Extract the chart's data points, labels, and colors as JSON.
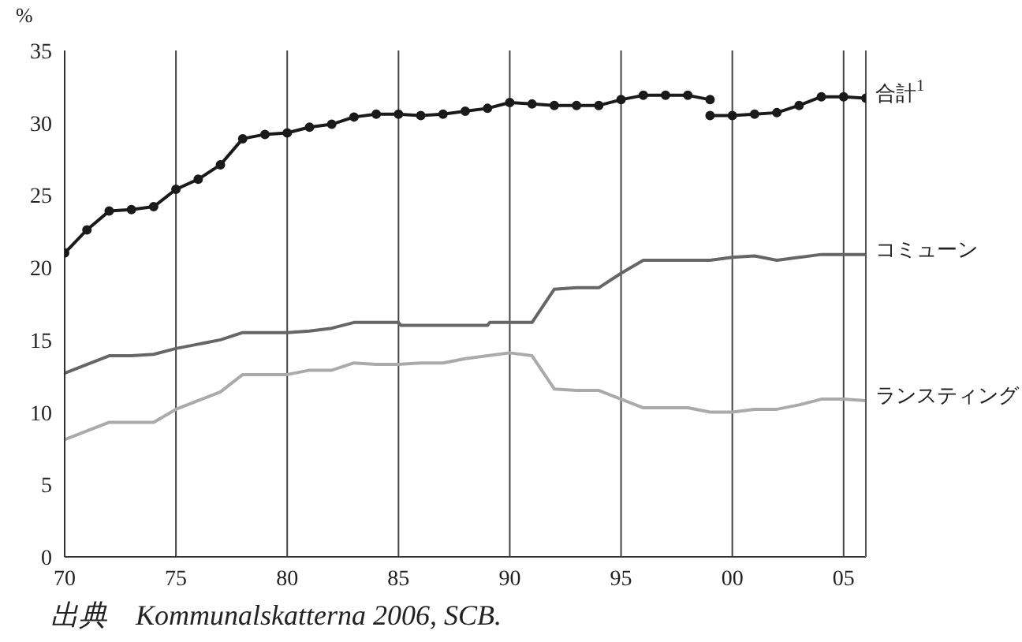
{
  "chart_data": {
    "type": "line",
    "ylabel": "%",
    "annotations": [
      "出典　Kommunalskatterna 2006, SCB."
    ],
    "xlim": [
      1970,
      2006
    ],
    "xticks": [
      {
        "value": 1970,
        "label": "70"
      },
      {
        "value": 1975,
        "label": "75"
      },
      {
        "value": 1980,
        "label": "80"
      },
      {
        "value": 1985,
        "label": "85"
      },
      {
        "value": 1990,
        "label": "90"
      },
      {
        "value": 1995,
        "label": "95"
      },
      {
        "value": 2000,
        "label": "00"
      },
      {
        "value": 2005,
        "label": "05"
      }
    ],
    "ylim": [
      0,
      35
    ],
    "yticks": [
      0,
      5,
      10,
      15,
      20,
      25,
      30,
      35
    ],
    "grid": true,
    "legend": false,
    "line_style": "solid",
    "series": [
      {
        "color": "#1a1a1a",
        "marker": "circle",
        "x": [
          1970,
          1971,
          1972,
          1973,
          1974,
          1975,
          1976,
          1977,
          1978,
          1979,
          1980,
          1981,
          1982,
          1983,
          1984,
          1985,
          1986,
          1987,
          1988,
          1989,
          1990,
          1991,
          1992,
          1993,
          1994,
          1995,
          1996,
          1997,
          1998,
          1999
        ],
        "values": [
          21.0,
          22.6,
          23.9,
          24.0,
          24.2,
          25.4,
          26.1,
          27.1,
          28.9,
          29.2,
          29.3,
          29.7,
          29.9,
          30.4,
          30.6,
          30.6,
          30.5,
          30.6,
          30.8,
          31.0,
          31.4,
          31.3,
          31.2,
          31.2,
          31.2,
          31.6,
          31.9,
          31.9,
          31.9,
          31.6
        ]
      },
      {
        "name": "合計$^{1}$",
        "color": "#1a1a1a",
        "marker": "circle",
        "x": [
          1999,
          2000,
          2001,
          2002,
          2003,
          2004,
          2005,
          2006
        ],
        "values": [
          30.5,
          30.5,
          30.6,
          30.7,
          31.2,
          31.8,
          31.8,
          31.7
        ]
      },
      {
        "name": "コミューン",
        "color": "#666666",
        "marker": "none",
        "x": [
          1970,
          1971,
          1972,
          1973,
          1974,
          1975,
          1976,
          1977,
          1978,
          1979,
          1980,
          1981,
          1982,
          1983,
          1984,
          1985,
          1985.1,
          1986,
          1987,
          1988,
          1989,
          1989.1,
          1990,
          1991,
          1992,
          1993,
          1994,
          1995,
          1996,
          1997,
          1998,
          1999,
          2000,
          2001,
          2002,
          2003,
          2004,
          2005,
          2006
        ],
        "values": [
          12.7,
          13.3,
          13.9,
          13.9,
          14.0,
          14.4,
          14.7,
          15.0,
          15.5,
          15.5,
          15.5,
          15.6,
          15.8,
          16.2,
          16.2,
          16.2,
          16.0,
          16.0,
          16.0,
          16.0,
          16.0,
          16.2,
          16.2,
          16.2,
          18.5,
          18.6,
          18.6,
          19.6,
          20.5,
          20.5,
          20.5,
          20.5,
          20.7,
          20.8,
          20.5,
          20.7,
          20.9,
          20.9,
          20.9
        ]
      },
      {
        "name": "ランスティング",
        "color": "#aaaaaa",
        "marker": "none",
        "x": [
          1970,
          1971,
          1972,
          1973,
          1974,
          1975,
          1976,
          1977,
          1978,
          1979,
          1980,
          1981,
          1982,
          1983,
          1984,
          1985,
          1986,
          1987,
          1988,
          1989,
          1990,
          1991,
          1992,
          1993,
          1994,
          1995,
          1996,
          1997,
          1998,
          1999,
          2000,
          2001,
          2002,
          2003,
          2004,
          2005,
          2006
        ],
        "values": [
          8.1,
          8.7,
          9.3,
          9.3,
          9.3,
          10.2,
          10.8,
          11.4,
          12.6,
          12.6,
          12.6,
          12.9,
          12.9,
          13.4,
          13.3,
          13.3,
          13.4,
          13.4,
          13.7,
          13.9,
          14.1,
          13.9,
          11.6,
          11.5,
          11.5,
          10.9,
          10.3,
          10.3,
          10.3,
          10.0,
          10.0,
          10.2,
          10.2,
          10.5,
          10.9,
          10.9,
          10.8
        ]
      }
    ]
  }
}
